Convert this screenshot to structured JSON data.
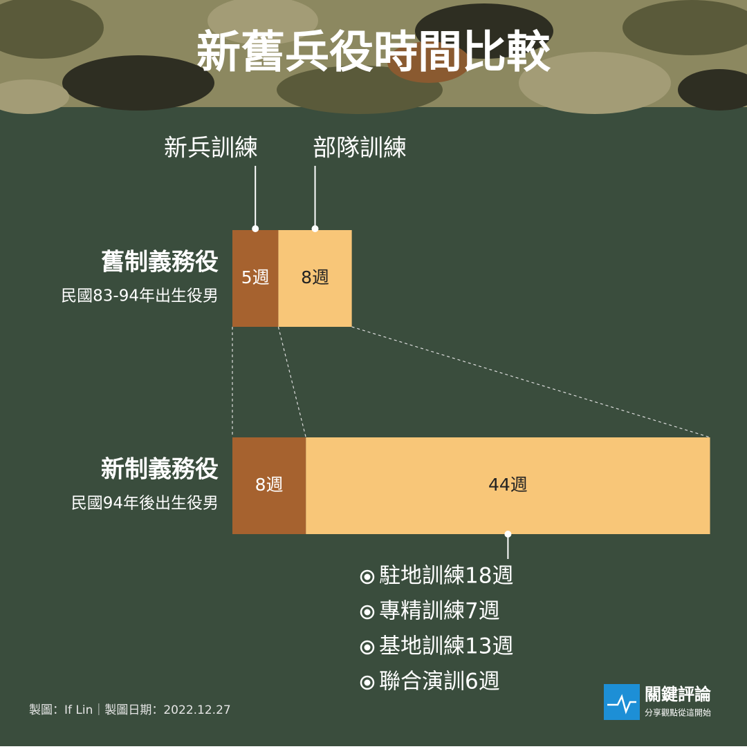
{
  "chart_data": {
    "type": "bar",
    "orientation": "horizontal",
    "stacked": true,
    "title": "新舊兵役時間比較",
    "categories": [
      "舊制義務役",
      "新制義務役"
    ],
    "category_notes": [
      "民國83-94年出生役男",
      "民國94年後出生役男"
    ],
    "series": [
      {
        "name": "新兵訓練",
        "color": "#a6622f",
        "values": [
          5,
          8
        ],
        "value_labels": [
          "5週",
          "8週"
        ]
      },
      {
        "name": "部隊訓練",
        "color": "#f8c678",
        "values": [
          8,
          44
        ],
        "value_labels": [
          "8週",
          "44週"
        ]
      }
    ],
    "breakdown": [
      "駐地訓練18週",
      "專精訓練7週",
      "基地訓練13週",
      "聯合演訓6週"
    ]
  },
  "credit": "製圖：If Lin｜製圖日期：2022.12.27",
  "logo": {
    "name": "關鍵評論",
    "tagline": "分享觀點從這開始"
  }
}
